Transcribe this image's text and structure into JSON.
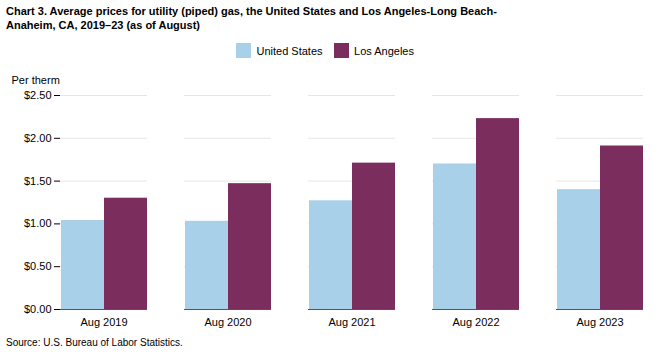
{
  "chart_data": {
    "type": "bar",
    "title": "Chart 3. Average prices for utility (piped) gas, the United States and Los Angeles-Long Beach-\nAnaheim, CA, 2019–23 (as of August)",
    "ylabel": "Per therm",
    "annotations": [
      "Source: U.S. Bureau of Labor Statistics."
    ],
    "categories": [
      "Aug 2019",
      "Aug 2020",
      "Aug 2021",
      "Aug 2022",
      "Aug 2023"
    ],
    "series": [
      {
        "name": "United States",
        "color": "#a8d0e8",
        "values": [
          1.04,
          1.03,
          1.27,
          1.7,
          1.4
        ]
      },
      {
        "name": "Los Angeles",
        "color": "#7B2D5E",
        "values": [
          1.3,
          1.47,
          1.71,
          2.23,
          1.91
        ]
      }
    ],
    "ylim": [
      0,
      2.5
    ],
    "yticks": [
      {
        "value": 0,
        "label": "$0.00"
      },
      {
        "value": 0.5,
        "label": "$0.50"
      },
      {
        "value": 1,
        "label": "$1.00"
      },
      {
        "value": 1.5,
        "label": "$1.50"
      },
      {
        "value": 2,
        "label": "$2.00"
      },
      {
        "value": 2.5,
        "label": "$2.50"
      }
    ],
    "grid": true,
    "legend": "top"
  }
}
